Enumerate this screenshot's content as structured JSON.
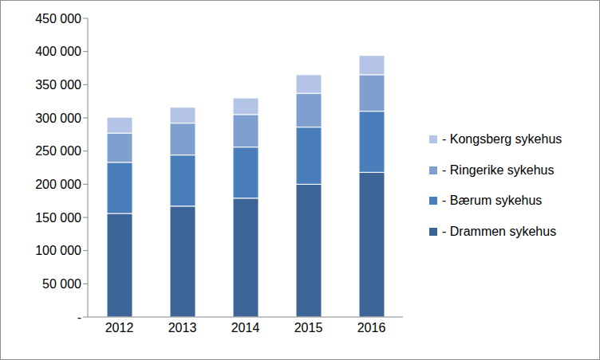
{
  "chart_data": {
    "type": "bar",
    "stacked": true,
    "legend": "right",
    "grid": false,
    "categories": [
      "2012",
      "2013",
      "2014",
      "2015",
      "2016"
    ],
    "series": [
      {
        "name": "- Drammen sykehus",
        "color": "#3c6496",
        "values": [
          156000,
          167000,
          179000,
          200000,
          218000
        ]
      },
      {
        "name": "- Bærum sykehus",
        "color": "#4a7ebb",
        "values": [
          77000,
          77000,
          77000,
          86000,
          92000
        ]
      },
      {
        "name": "- Ringerike sykehus",
        "color": "#7f9fcf",
        "values": [
          44000,
          48000,
          49000,
          51000,
          55000
        ]
      },
      {
        "name": "- Kongsberg sykehus",
        "color": "#b4c4e6",
        "values": [
          24000,
          24000,
          25000,
          28000,
          29000
        ]
      }
    ],
    "ylim": [
      0,
      450000
    ],
    "yticks": [
      {
        "value": 0,
        "label": "-"
      },
      {
        "value": 50000,
        "label": "50 000"
      },
      {
        "value": 100000,
        "label": "100 000"
      },
      {
        "value": 150000,
        "label": "150 000"
      },
      {
        "value": 200000,
        "label": "200 000"
      },
      {
        "value": 250000,
        "label": "250 000"
      },
      {
        "value": 300000,
        "label": "300 000"
      },
      {
        "value": 350000,
        "label": "350 000"
      },
      {
        "value": 400000,
        "label": "400 000"
      },
      {
        "value": 450000,
        "label": "450 000"
      }
    ]
  }
}
